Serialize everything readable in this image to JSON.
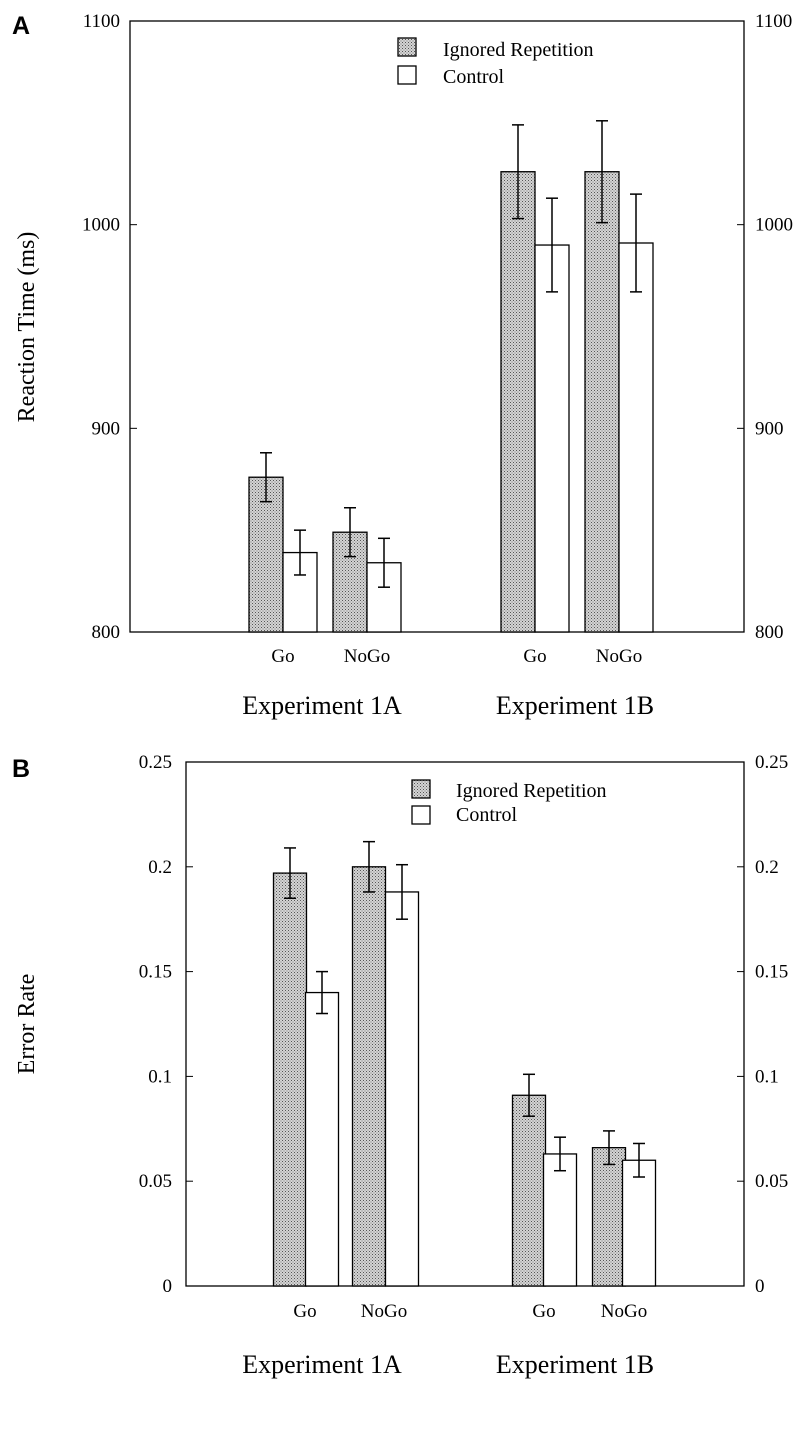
{
  "chart_data": [
    {
      "panel": "A",
      "type": "bar",
      "ylabel": "Reaction Time (ms)",
      "ylim": [
        800,
        1100
      ],
      "yticks": [
        800,
        900,
        1000,
        1100
      ],
      "yticks_right": true,
      "legend": {
        "placement": "top-center",
        "entries": [
          "Ignored Repetition",
          "Control"
        ]
      },
      "groups": [
        {
          "label": "Experiment 1A",
          "categories": [
            "Go",
            "NoGo"
          ]
        },
        {
          "label": "Experiment 1B",
          "categories": [
            "Go",
            "NoGo"
          ]
        }
      ],
      "categories": [
        "Go",
        "NoGo",
        "Go",
        "NoGo"
      ],
      "series": [
        {
          "name": "Ignored Repetition",
          "pattern": "stippled",
          "values": [
            876,
            849,
            1026,
            1026
          ],
          "errors": [
            12,
            12,
            23,
            25
          ]
        },
        {
          "name": "Control",
          "pattern": "white",
          "values": [
            839,
            834,
            990,
            991
          ],
          "errors": [
            11,
            12,
            23,
            24
          ]
        }
      ]
    },
    {
      "panel": "B",
      "type": "bar",
      "ylabel": "Error Rate",
      "ylim": [
        0,
        0.25
      ],
      "yticks": [
        "0",
        "0.05",
        "0.1",
        "0.15",
        "0.2",
        "0.25"
      ],
      "yticks_right": true,
      "legend": {
        "placement": "top-center",
        "entries": [
          "Ignored Repetition",
          "Control"
        ]
      },
      "groups": [
        {
          "label": "Experiment 1A",
          "categories": [
            "Go",
            "NoGo"
          ]
        },
        {
          "label": "Experiment 1B",
          "categories": [
            "Go",
            "NoGo"
          ]
        }
      ],
      "categories": [
        "Go",
        "NoGo",
        "Go",
        "NoGo"
      ],
      "series": [
        {
          "name": "Ignored Repetition",
          "pattern": "stippled",
          "values": [
            0.197,
            0.2,
            0.091,
            0.066
          ],
          "errors": [
            0.012,
            0.012,
            0.01,
            0.008
          ]
        },
        {
          "name": "Control",
          "pattern": "white",
          "values": [
            0.14,
            0.188,
            0.063,
            0.06
          ],
          "errors": [
            0.01,
            0.013,
            0.008,
            0.008
          ]
        }
      ]
    }
  ]
}
